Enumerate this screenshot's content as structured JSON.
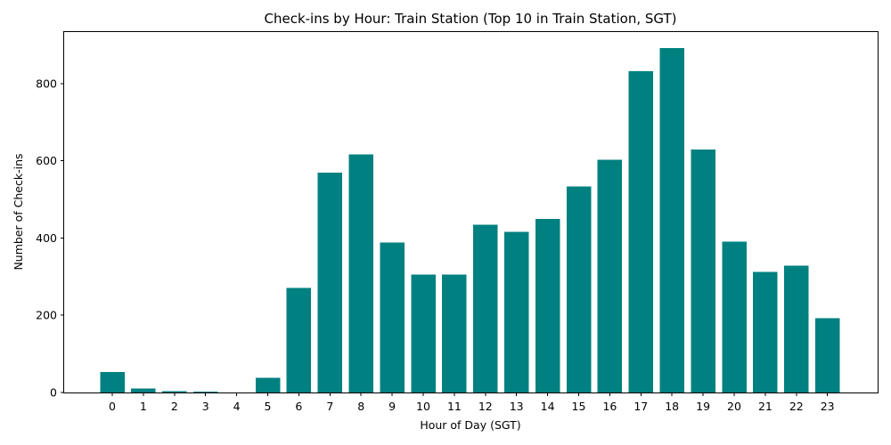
{
  "chart_data": {
    "type": "bar",
    "title": "Check-ins by Hour: Train Station (Top 10 in Train Station, SGT)",
    "xlabel": "Hour of Day (SGT)",
    "ylabel": "Number of Check-ins",
    "categories": [
      "0",
      "1",
      "2",
      "3",
      "4",
      "5",
      "6",
      "7",
      "8",
      "9",
      "10",
      "11",
      "12",
      "13",
      "14",
      "15",
      "16",
      "17",
      "18",
      "19",
      "20",
      "21",
      "22",
      "23"
    ],
    "values": [
      53,
      10,
      4,
      2,
      0,
      38,
      271,
      570,
      617,
      388,
      306,
      306,
      435,
      416,
      449,
      534,
      603,
      832,
      892,
      629,
      391,
      312,
      329,
      193
    ],
    "ylim": [
      0,
      936
    ],
    "yticks": [
      0,
      200,
      400,
      600,
      800
    ],
    "bar_color": "#008080",
    "grid": false,
    "legend": "none"
  }
}
